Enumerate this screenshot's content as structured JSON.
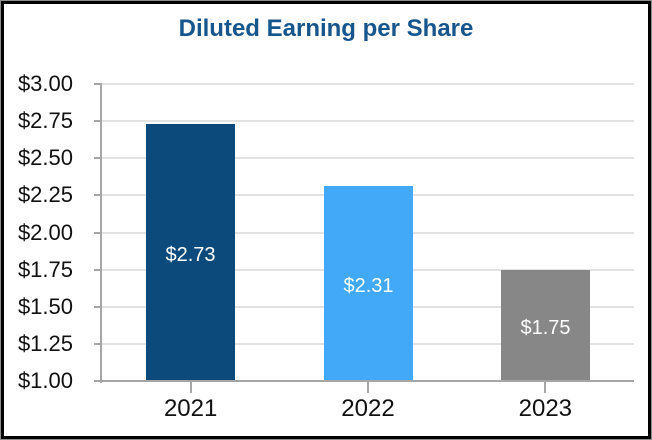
{
  "chart_data": {
    "type": "bar",
    "title": "Diluted Earning per Share",
    "title_color": "#17568C",
    "categories": [
      "2021",
      "2022",
      "2023"
    ],
    "values": [
      2.73,
      2.31,
      1.75
    ],
    "value_labels": [
      "$2.73",
      "$2.31",
      "$1.75"
    ],
    "bar_colors": [
      "#0D4A7C",
      "#41A9F8",
      "#878787"
    ],
    "y_tick_labels": [
      "$3.00",
      "$2.75",
      "$2.50",
      "$2.25",
      "$2.00",
      "$1.75",
      "$1.50",
      "$1.25",
      "$1.00"
    ],
    "ylim": [
      1.0,
      3.0
    ],
    "y_step": 0.25,
    "xlabel": "",
    "ylabel": "",
    "grid": "horizontal-only",
    "legend": "none",
    "axis_color": "#A6A6A6",
    "gridline_color": "#E2E2E2",
    "label_text_color": "#111111",
    "value_label_color": "#FFFFFF"
  }
}
